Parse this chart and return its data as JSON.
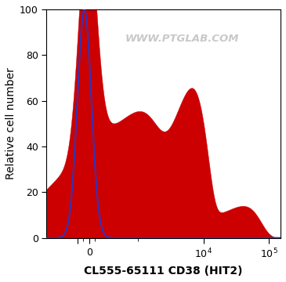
{
  "title": "WWW.PTGLAB.COM",
  "xlabel": "CL555-65111 CD38 (HIT2)",
  "ylabel": "Relative cell number",
  "ylim": [
    0,
    100
  ],
  "yticks": [
    0,
    20,
    40,
    60,
    80,
    100
  ],
  "bg_color": "#ffffff",
  "watermark_color": "#c8c8c8",
  "blue_line_color": "#3333bb",
  "red_fill_color": "#cc0000",
  "red_edge_color": "#cc0000",
  "red_fill_alpha": 1.0,
  "linthresh": 500,
  "linscale": 0.4,
  "xlim_lo": -800,
  "xlim_hi": 150000
}
